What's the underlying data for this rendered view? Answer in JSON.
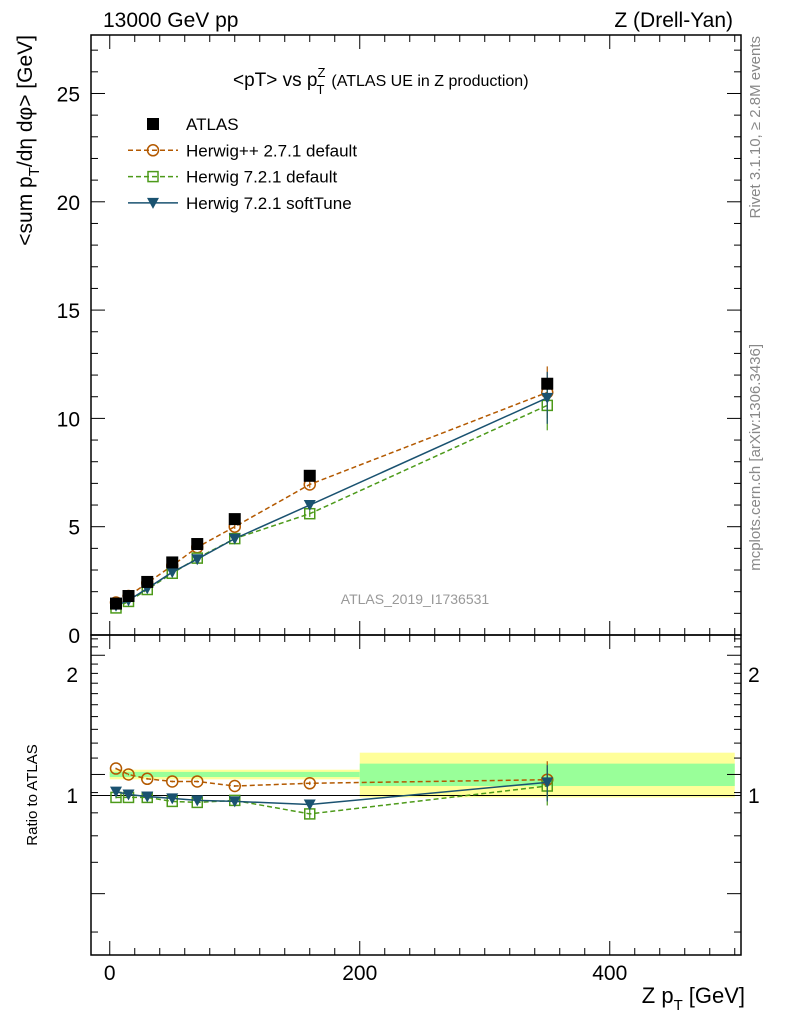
{
  "header": {
    "left": "13000 GeV pp",
    "right": "Z (Drell-Yan)"
  },
  "side_texts": {
    "rivet": "Rivet 3.1.10, ≥ 2.8M events",
    "mcplots": "mcplots.cern.ch [arXiv:1306.3436]"
  },
  "chart_data": [
    {
      "type": "scatter",
      "title": {
        "main": "<pT> vs p",
        "sup": "Z",
        "sub": "T",
        "rest": "(ATLAS UE in Z production)"
      },
      "ylabel": {
        "a": "<sum p",
        "b": "T",
        "c": "/dη dφ> [GeV]"
      },
      "watermark": "ATLAS_2019_I1736531",
      "xlim": [
        -15,
        505
      ],
      "ylim": [
        0,
        27.7
      ],
      "yticks": [
        0,
        5,
        10,
        15,
        20,
        25
      ],
      "ytick_labels": [
        "0",
        "5",
        "10",
        "15",
        "20",
        "25"
      ],
      "x": [
        5,
        15,
        30,
        50,
        70,
        100,
        160,
        350
      ],
      "legend": {
        "position": "top-left",
        "entries": [
          "ATLAS",
          "Herwig++ 2.7.1 default",
          "Herwig 7.2.1 default",
          "Herwig 7.2.1 softTune"
        ]
      },
      "series": [
        {
          "name": "ATLAS",
          "color": "#000000",
          "marker": "filled-square",
          "values": [
            1.45,
            1.8,
            2.45,
            3.35,
            4.2,
            5.35,
            7.35,
            11.6
          ]
        },
        {
          "name": "Herwig++ 2.7.1 default",
          "color": "#b35900",
          "marker": "open-circle",
          "line": "dashed",
          "values": [
            1.5,
            1.8,
            2.4,
            3.2,
            4.05,
            5.0,
            6.95,
            11.2
          ],
          "errors": [
            0.1,
            0.1,
            0.1,
            0.1,
            0.1,
            0.1,
            0.15,
            1.2
          ]
        },
        {
          "name": "Herwig 7.2.1 default",
          "color": "#4d9a1a",
          "marker": "open-square",
          "line": "dashed",
          "values": [
            1.25,
            1.55,
            2.1,
            2.85,
            3.55,
            4.45,
            5.6,
            10.6
          ],
          "errors": [
            0.1,
            0.1,
            0.1,
            0.1,
            0.1,
            0.1,
            0.15,
            1.15
          ]
        },
        {
          "name": "Herwig 7.2.1 softTune",
          "color": "#1a5270",
          "marker": "filled-triangle-down",
          "line": "solid",
          "values": [
            1.35,
            1.6,
            2.15,
            2.9,
            3.5,
            4.45,
            6.0,
            10.95
          ],
          "errors": [
            0.1,
            0.1,
            0.1,
            0.1,
            0.1,
            0.1,
            0.15,
            1.2
          ]
        }
      ]
    },
    {
      "type": "scatter",
      "ylabel": "Ratio to ATLAS",
      "xlabel": {
        "a": "Z p",
        "b": "T",
        "c": "[GeV]"
      },
      "xlim": [
        -15,
        505
      ],
      "xticks": [
        0,
        200,
        400
      ],
      "xtick_labels": [
        "0",
        "200",
        "400"
      ],
      "ylim": [
        0.35,
        2.25
      ],
      "yscale": "log",
      "ytick_labels": {
        "v0.5": "0.5",
        "v1": "1",
        "v2": "2"
      },
      "reference_line": 1,
      "bands": [
        {
          "x0": 0,
          "x1": 200,
          "stat_lo": 0.985,
          "stat_hi": 1.015,
          "tot_lo": 0.972,
          "tot_hi": 1.028
        },
        {
          "x0": 200,
          "x1": 500,
          "stat_lo": 0.935,
          "stat_hi": 1.065,
          "tot_lo": 0.875,
          "tot_hi": 1.135
        }
      ],
      "band_colors": {
        "stat": "#99ff99",
        "total": "#ffff99"
      },
      "x": [
        5,
        15,
        30,
        50,
        70,
        100,
        160,
        350
      ],
      "series": [
        {
          "name": "Herwig++ 2.7.1 default",
          "color": "#b35900",
          "values": [
            1.035,
            1.0,
            0.975,
            0.96,
            0.96,
            0.935,
            0.95,
            0.97
          ],
          "errors": [
            0.005,
            0.005,
            0.005,
            0.005,
            0.005,
            0.005,
            0.01,
            0.11
          ]
        },
        {
          "name": "Herwig 7.2.1 default",
          "color": "#4d9a1a",
          "values": [
            0.875,
            0.875,
            0.875,
            0.855,
            0.85,
            0.86,
            0.795,
            0.935
          ],
          "errors": [
            0.005,
            0.005,
            0.005,
            0.005,
            0.005,
            0.005,
            0.02,
            0.1
          ]
        },
        {
          "name": "Herwig 7.2.1 softTune",
          "color": "#1a5270",
          "values": [
            0.905,
            0.89,
            0.88,
            0.87,
            0.86,
            0.855,
            0.84,
            0.955
          ],
          "errors": [
            0.005,
            0.005,
            0.005,
            0.005,
            0.005,
            0.005,
            0.02,
            0.1
          ]
        }
      ]
    }
  ]
}
